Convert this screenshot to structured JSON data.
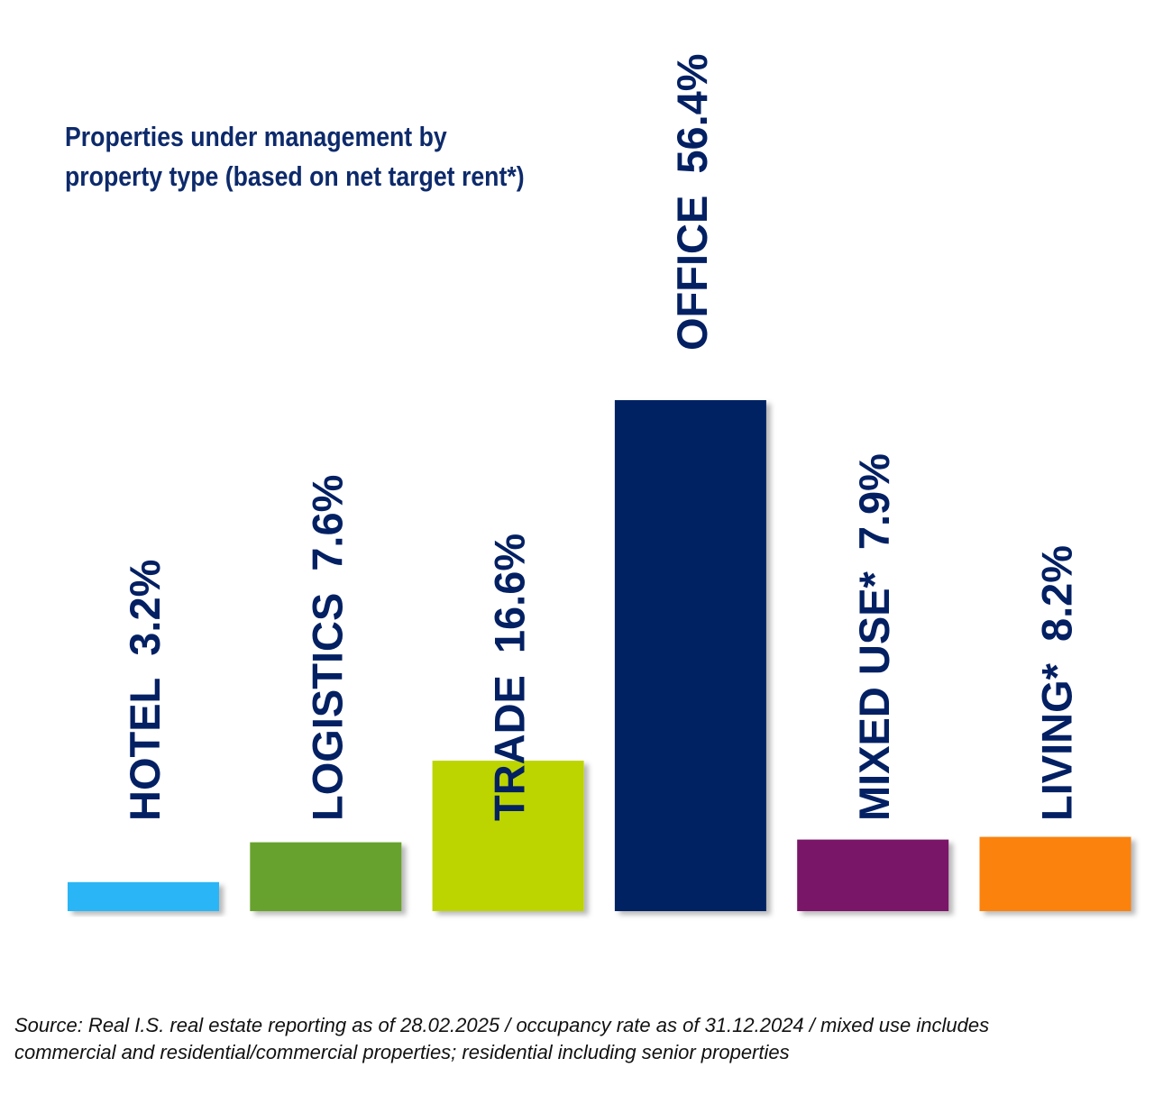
{
  "chart_data": {
    "type": "bar",
    "title_lines": [
      "Properties under management by",
      "property type (based on net target rent*)"
    ],
    "categories": [
      "HOTEL",
      "LOGISTICS",
      "TRADE",
      "OFFICE",
      "MIXED USE*",
      "LIVING*"
    ],
    "values": [
      3.2,
      7.6,
      16.6,
      56.4,
      7.9,
      8.2
    ],
    "value_labels": [
      "3.2%",
      "7.6%",
      "16.6%",
      "56.4%",
      "7.9%",
      "8.2%"
    ],
    "colors": [
      "#29b6f6",
      "#68a22f",
      "#bcd400",
      "#032063",
      "#7a1467",
      "#fb8209"
    ],
    "label_color": "#032063",
    "grid": false,
    "legend": "none"
  },
  "source_lines": [
    "Source: Real I.S. real estate reporting as of 28.02.2025 / occupancy rate as of 31.12.2024 / mixed use includes",
    "commercial and residential/commercial properties; residential including senior properties"
  ]
}
